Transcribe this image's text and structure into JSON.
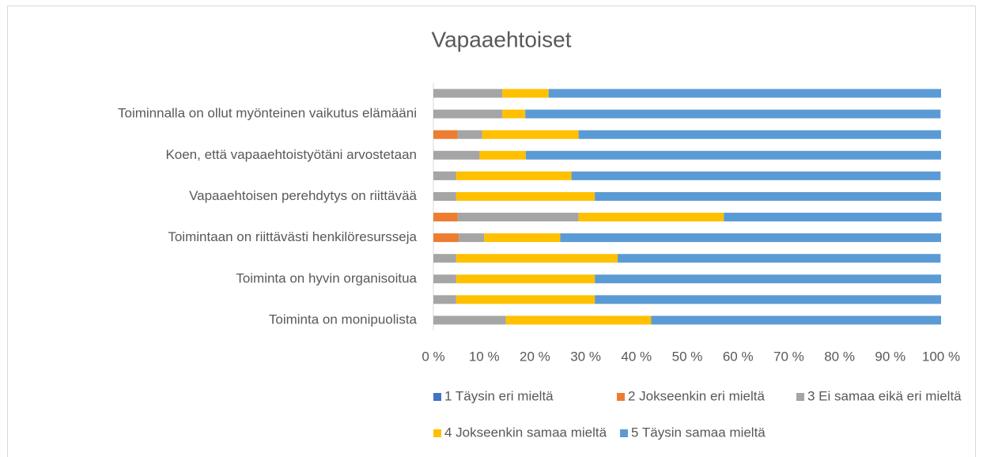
{
  "chart_data": {
    "type": "stacked-barh",
    "title": "Vapaaehtoiset",
    "categories": [
      "Toiminta on monipuolista",
      null,
      "Toiminta on hyvin organisoitua",
      null,
      "Toimintaan on riittävästi henkilöresursseja",
      null,
      "Vapaaehtoisen perehdytys on riittävää",
      null,
      "Koen, että vapaaehtoistyötäni arvostetaan",
      null,
      "Toiminnalla on ollut myönteinen vaikutus elämääni",
      null
    ],
    "series": [
      {
        "name": "1 Täysin eri mieltä",
        "color": "#4472c4",
        "values": [
          0,
          0,
          0,
          0,
          0,
          0,
          0,
          0,
          0,
          0,
          0,
          0
        ]
      },
      {
        "name": "2 Jokseenkin eri mieltä",
        "color": "#ed7d31",
        "values": [
          0,
          0,
          0,
          0,
          5,
          4.8,
          0,
          0,
          0,
          4.8,
          0,
          0
        ]
      },
      {
        "name": "3 Ei samaa eikä eri mieltä",
        "color": "#a5a5a5",
        "values": [
          14.3,
          4.5,
          4.5,
          4.5,
          5,
          23.8,
          4.5,
          4.5,
          9.1,
          4.8,
          13.6,
          13.6
        ]
      },
      {
        "name": "4 Jokseenkin samaa mieltä",
        "color": "#ffc000",
        "values": [
          28.6,
          27.3,
          27.3,
          31.8,
          15,
          28.6,
          27.3,
          22.7,
          9.1,
          19,
          4.5,
          9.1
        ]
      },
      {
        "name": "5 Täysin samaa mieltä",
        "color": "#5b9bd5",
        "values": [
          57.1,
          68.2,
          68.2,
          63.6,
          75,
          42.9,
          68.2,
          72.7,
          81.8,
          71.4,
          81.8,
          77.3
        ]
      }
    ],
    "xlim": [
      0,
      100
    ],
    "xticks": [
      {
        "value": 0,
        "label": "0 %"
      },
      {
        "value": 10,
        "label": "10 %"
      },
      {
        "value": 20,
        "label": "20 %"
      },
      {
        "value": 30,
        "label": "30 %"
      },
      {
        "value": 40,
        "label": "40 %"
      },
      {
        "value": 50,
        "label": "50 %"
      },
      {
        "value": 60,
        "label": "60 %"
      },
      {
        "value": 70,
        "label": "70 %"
      },
      {
        "value": 80,
        "label": "80 %"
      },
      {
        "value": 90,
        "label": "90 %"
      },
      {
        "value": 100,
        "label": "100 %"
      }
    ],
    "legend": "bottom"
  }
}
